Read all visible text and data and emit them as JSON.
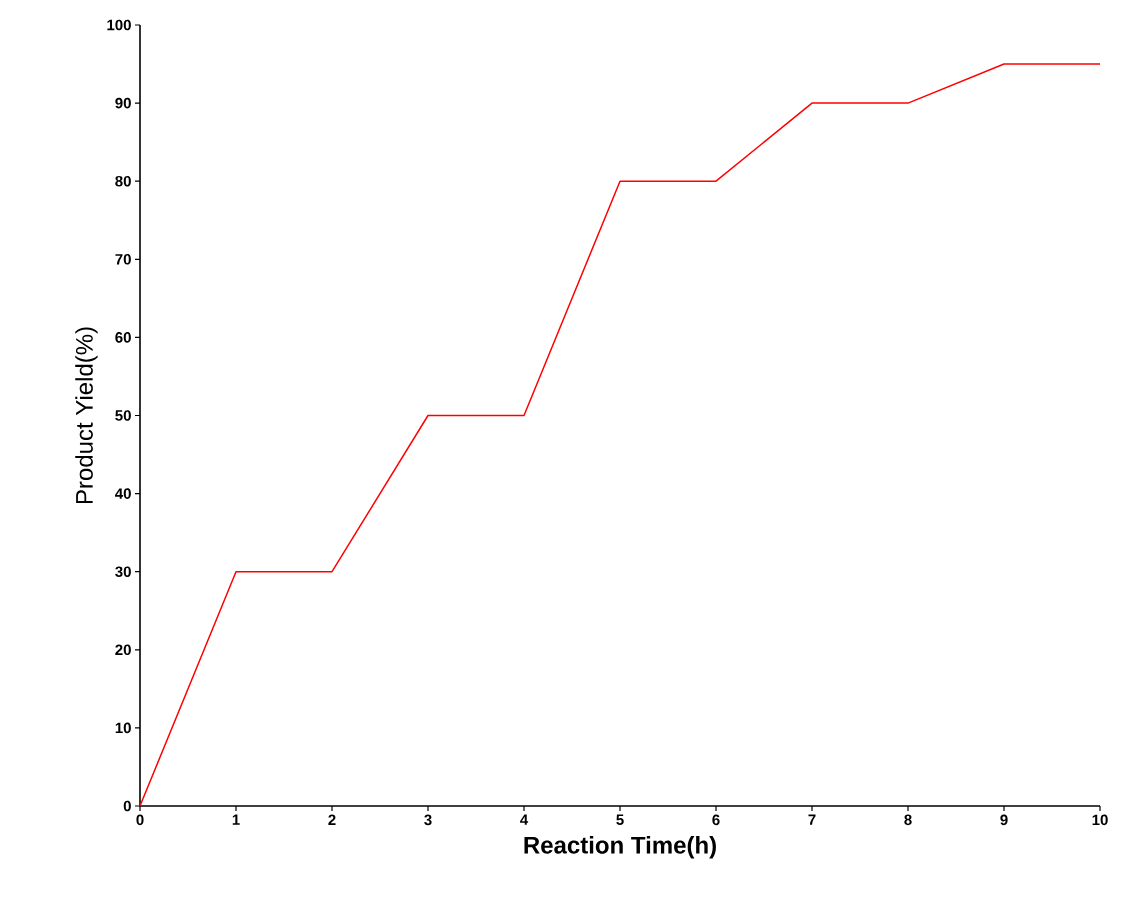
{
  "chart_data": {
    "type": "line",
    "xlabel": "Reaction Time(h)",
    "ylabel": "Product Yield(%)",
    "x": [
      0,
      1,
      2,
      3,
      4,
      5,
      6,
      7,
      8,
      9,
      10
    ],
    "series": [
      {
        "color": "#ff0000",
        "values": [
          0,
          30,
          30,
          50,
          50,
          80,
          80,
          90,
          90,
          95,
          95
        ]
      }
    ],
    "xlim": [
      0,
      10
    ],
    "ylim": [
      0,
      100
    ],
    "xticks": [
      0,
      1,
      2,
      3,
      4,
      5,
      6,
      7,
      8,
      9,
      10
    ],
    "yticks": [
      0,
      10,
      20,
      30,
      40,
      50,
      60,
      70,
      80,
      90,
      100
    ]
  }
}
